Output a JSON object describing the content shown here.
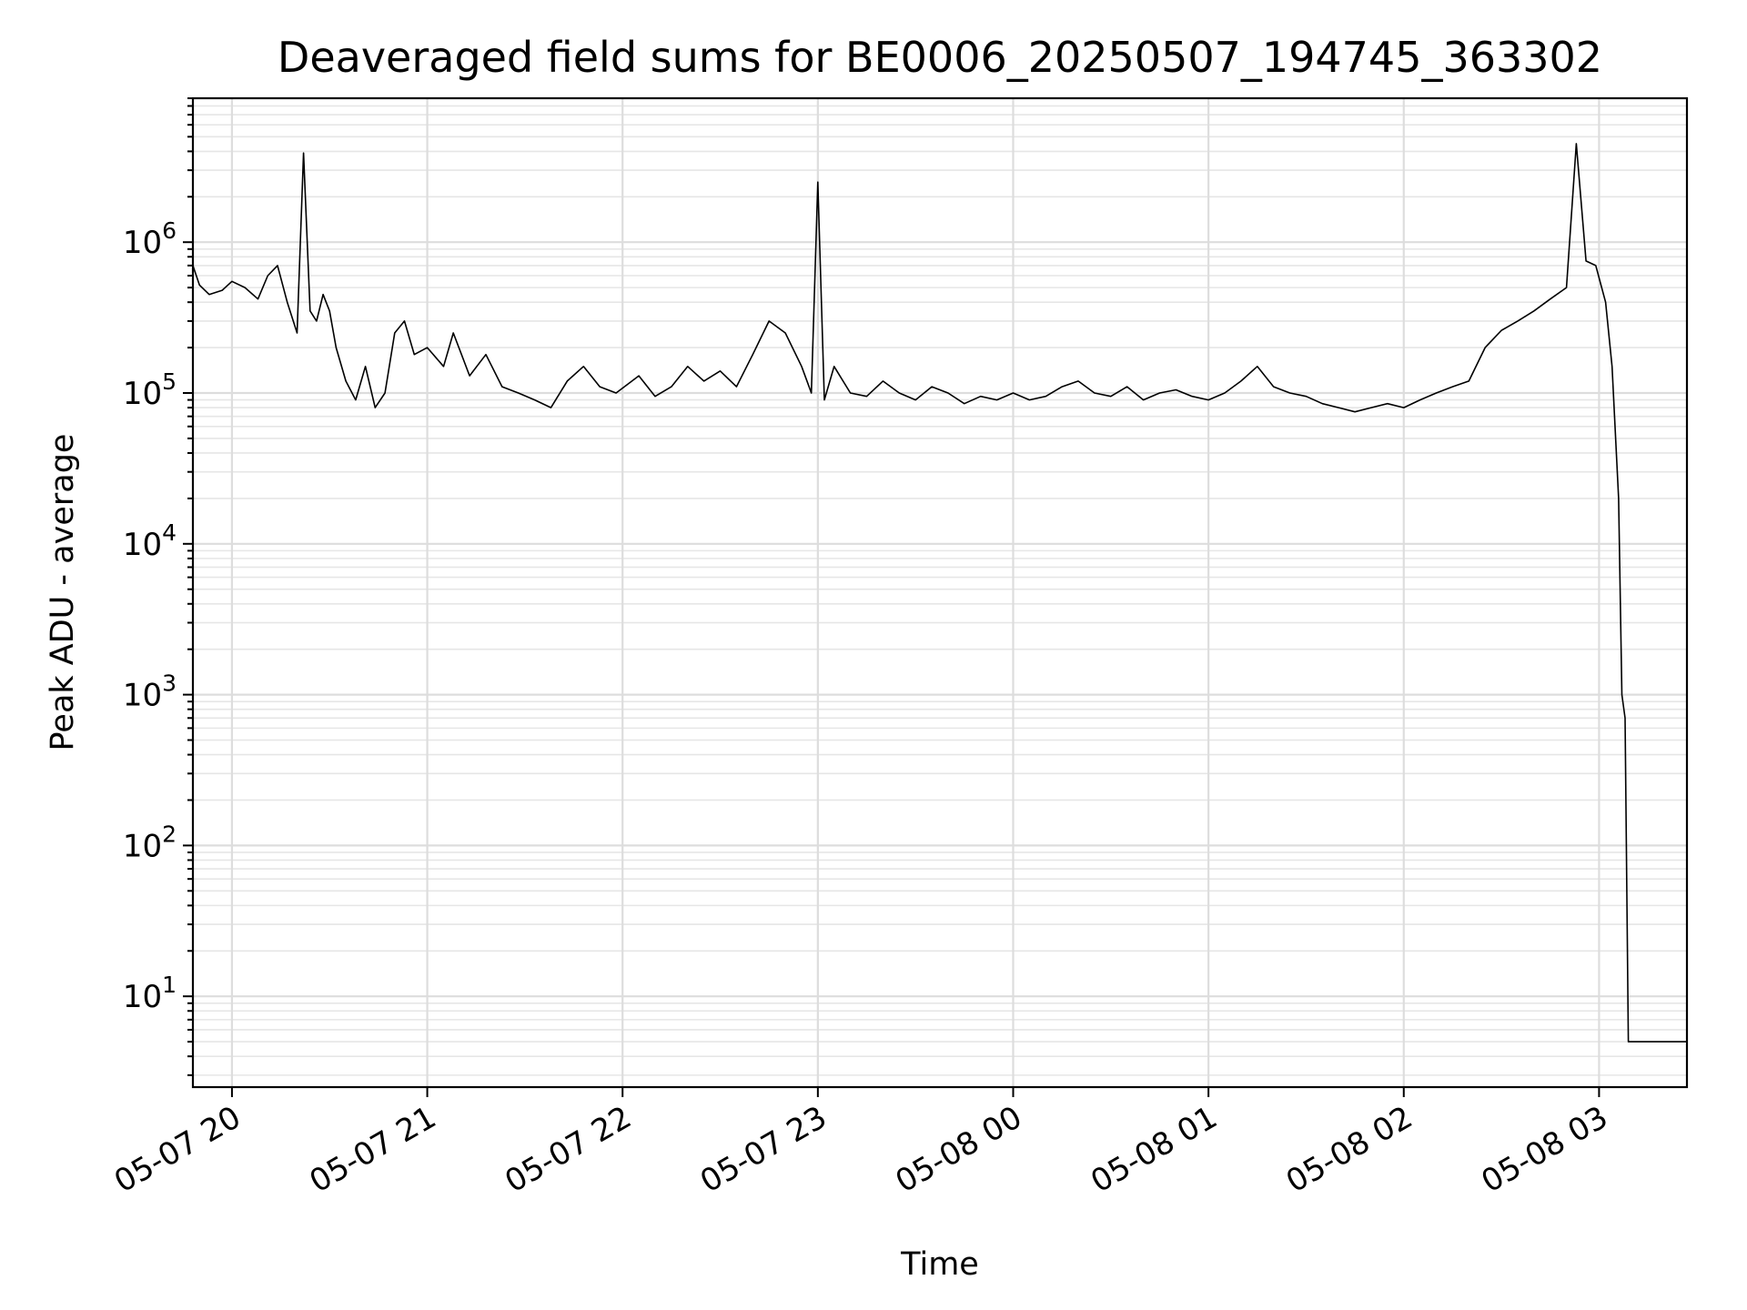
{
  "chart_data": {
    "type": "line",
    "title": "Deaveraged field sums for BE0006_20250507_194745_363302",
    "xlabel": "Time",
    "ylabel": "Peak ADU - average",
    "yscale": "log",
    "grid": true,
    "grid_minor": true,
    "line_color": "#000000",
    "xlim": [
      "2025-05-07 19:48",
      "2025-05-08 03:27"
    ],
    "ylim": [
      2.5,
      9000000
    ],
    "x_ticks": [
      {
        "value": "2025-05-07 20:00",
        "label": "05-07 20"
      },
      {
        "value": "2025-05-07 21:00",
        "label": "05-07 21"
      },
      {
        "value": "2025-05-07 22:00",
        "label": "05-07 22"
      },
      {
        "value": "2025-05-07 23:00",
        "label": "05-07 23"
      },
      {
        "value": "2025-05-08 00:00",
        "label": "05-08 00"
      },
      {
        "value": "2025-05-08 01:00",
        "label": "05-08 01"
      },
      {
        "value": "2025-05-08 02:00",
        "label": "05-08 02"
      },
      {
        "value": "2025-05-08 03:00",
        "label": "05-08 03"
      }
    ],
    "y_ticks": [
      {
        "value": 10,
        "base": "10",
        "exp": "1"
      },
      {
        "value": 100,
        "base": "10",
        "exp": "2"
      },
      {
        "value": 1000,
        "base": "10",
        "exp": "3"
      },
      {
        "value": 10000,
        "base": "10",
        "exp": "4"
      },
      {
        "value": 100000,
        "base": "10",
        "exp": "5"
      },
      {
        "value": 1000000,
        "base": "10",
        "exp": "6"
      }
    ],
    "series": [
      {
        "x": [
          "2025-05-07 19:48",
          "2025-05-07 19:50",
          "2025-05-07 19:53",
          "2025-05-07 19:57",
          "2025-05-07 20:00",
          "2025-05-07 20:04",
          "2025-05-07 20:08",
          "2025-05-07 20:11",
          "2025-05-07 20:14",
          "2025-05-07 20:17",
          "2025-05-07 20:20",
          "2025-05-07 20:22",
          "2025-05-07 20:24",
          "2025-05-07 20:26",
          "2025-05-07 20:28",
          "2025-05-07 20:30",
          "2025-05-07 20:32",
          "2025-05-07 20:35",
          "2025-05-07 20:38",
          "2025-05-07 20:41",
          "2025-05-07 20:44",
          "2025-05-07 20:47",
          "2025-05-07 20:50",
          "2025-05-07 20:53",
          "2025-05-07 20:56",
          "2025-05-07 21:00",
          "2025-05-07 21:05",
          "2025-05-07 21:08",
          "2025-05-07 21:13",
          "2025-05-07 21:18",
          "2025-05-07 21:23",
          "2025-05-07 21:28",
          "2025-05-07 21:33",
          "2025-05-07 21:38",
          "2025-05-07 21:43",
          "2025-05-07 21:48",
          "2025-05-07 21:53",
          "2025-05-07 21:58",
          "2025-05-07 22:05",
          "2025-05-07 22:10",
          "2025-05-07 22:15",
          "2025-05-07 22:20",
          "2025-05-07 22:25",
          "2025-05-07 22:30",
          "2025-05-07 22:35",
          "2025-05-07 22:40",
          "2025-05-07 22:45",
          "2025-05-07 22:50",
          "2025-05-07 22:55",
          "2025-05-07 22:58",
          "2025-05-07 23:00",
          "2025-05-07 23:02",
          "2025-05-07 23:05",
          "2025-05-07 23:10",
          "2025-05-07 23:15",
          "2025-05-07 23:20",
          "2025-05-07 23:25",
          "2025-05-07 23:30",
          "2025-05-07 23:35",
          "2025-05-07 23:40",
          "2025-05-07 23:45",
          "2025-05-07 23:50",
          "2025-05-07 23:55",
          "2025-05-08 00:00",
          "2025-05-08 00:05",
          "2025-05-08 00:10",
          "2025-05-08 00:15",
          "2025-05-08 00:20",
          "2025-05-08 00:25",
          "2025-05-08 00:30",
          "2025-05-08 00:35",
          "2025-05-08 00:40",
          "2025-05-08 00:45",
          "2025-05-08 00:50",
          "2025-05-08 00:55",
          "2025-05-08 01:00",
          "2025-05-08 01:05",
          "2025-05-08 01:10",
          "2025-05-08 01:15",
          "2025-05-08 01:20",
          "2025-05-08 01:25",
          "2025-05-08 01:30",
          "2025-05-08 01:35",
          "2025-05-08 01:40",
          "2025-05-08 01:45",
          "2025-05-08 01:50",
          "2025-05-08 01:55",
          "2025-05-08 02:00",
          "2025-05-08 02:05",
          "2025-05-08 02:10",
          "2025-05-08 02:15",
          "2025-05-08 02:20",
          "2025-05-08 02:25",
          "2025-05-08 02:30",
          "2025-05-08 02:35",
          "2025-05-08 02:40",
          "2025-05-08 02:45",
          "2025-05-08 02:50",
          "2025-05-08 02:53",
          "2025-05-08 02:56",
          "2025-05-08 02:59",
          "2025-05-08 03:02",
          "2025-05-08 03:04",
          "2025-05-08 03:06",
          "2025-05-08 03:07",
          "2025-05-08 03:08",
          "2025-05-08 03:09",
          "2025-05-08 03:10",
          "2025-05-08 03:11",
          "2025-05-08 03:12",
          "2025-05-08 03:27"
        ],
        "y": [
          700000,
          520000,
          450000,
          480000,
          550000,
          500000,
          420000,
          600000,
          700000,
          400000,
          250000,
          3900000,
          350000,
          300000,
          450000,
          350000,
          200000,
          120000,
          90000,
          150000,
          80000,
          100000,
          250000,
          300000,
          180000,
          200000,
          150000,
          250000,
          130000,
          180000,
          110000,
          100000,
          90000,
          80000,
          120000,
          150000,
          110000,
          100000,
          130000,
          95000,
          110000,
          150000,
          120000,
          140000,
          110000,
          180000,
          300000,
          250000,
          150000,
          100000,
          2500000,
          90000,
          150000,
          100000,
          95000,
          120000,
          100000,
          90000,
          110000,
          100000,
          85000,
          95000,
          90000,
          100000,
          90000,
          95000,
          110000,
          120000,
          100000,
          95000,
          110000,
          90000,
          100000,
          105000,
          95000,
          90000,
          100000,
          120000,
          150000,
          110000,
          100000,
          95000,
          85000,
          80000,
          75000,
          80000,
          85000,
          80000,
          90000,
          100000,
          110000,
          120000,
          200000,
          260000,
          300000,
          350000,
          420000,
          500000,
          4500000,
          750000,
          700000,
          400000,
          150000,
          20000,
          1000,
          700,
          5,
          5,
          5,
          5,
          5
        ]
      }
    ]
  }
}
